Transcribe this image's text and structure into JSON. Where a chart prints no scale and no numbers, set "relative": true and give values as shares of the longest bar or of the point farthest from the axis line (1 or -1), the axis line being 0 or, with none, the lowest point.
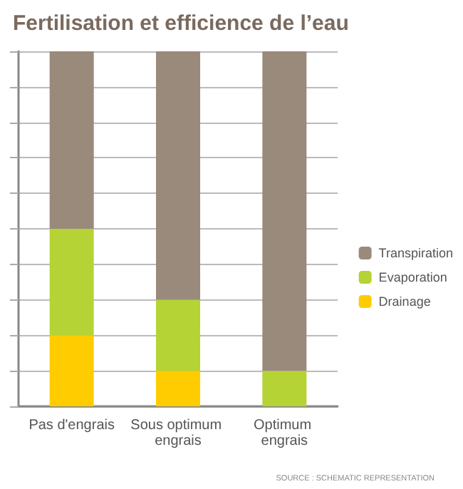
{
  "chart_data": {
    "type": "bar",
    "title": "Fertilisation et efficience de l’eau",
    "categories": [
      "Pas d'engrais",
      "Sous optimum engrais",
      "Optimum engrais"
    ],
    "stacked": true,
    "relative": true,
    "grid": "y",
    "legend": "right",
    "annotations": [
      "SOURCE : SCHEMATIC REPRESENTATION"
    ],
    "series": [
      {
        "name": "Drainage",
        "color": "#ffcc00",
        "values": [
          0.2,
          0.1,
          0
        ]
      },
      {
        "name": "Evaporation",
        "color": "#b5d334",
        "values": [
          0.3,
          0.2,
          0.1
        ]
      },
      {
        "name": "Transpiration",
        "color": "#9a8a7c",
        "values": [
          0.5,
          0.7,
          0.9
        ]
      }
    ]
  }
}
